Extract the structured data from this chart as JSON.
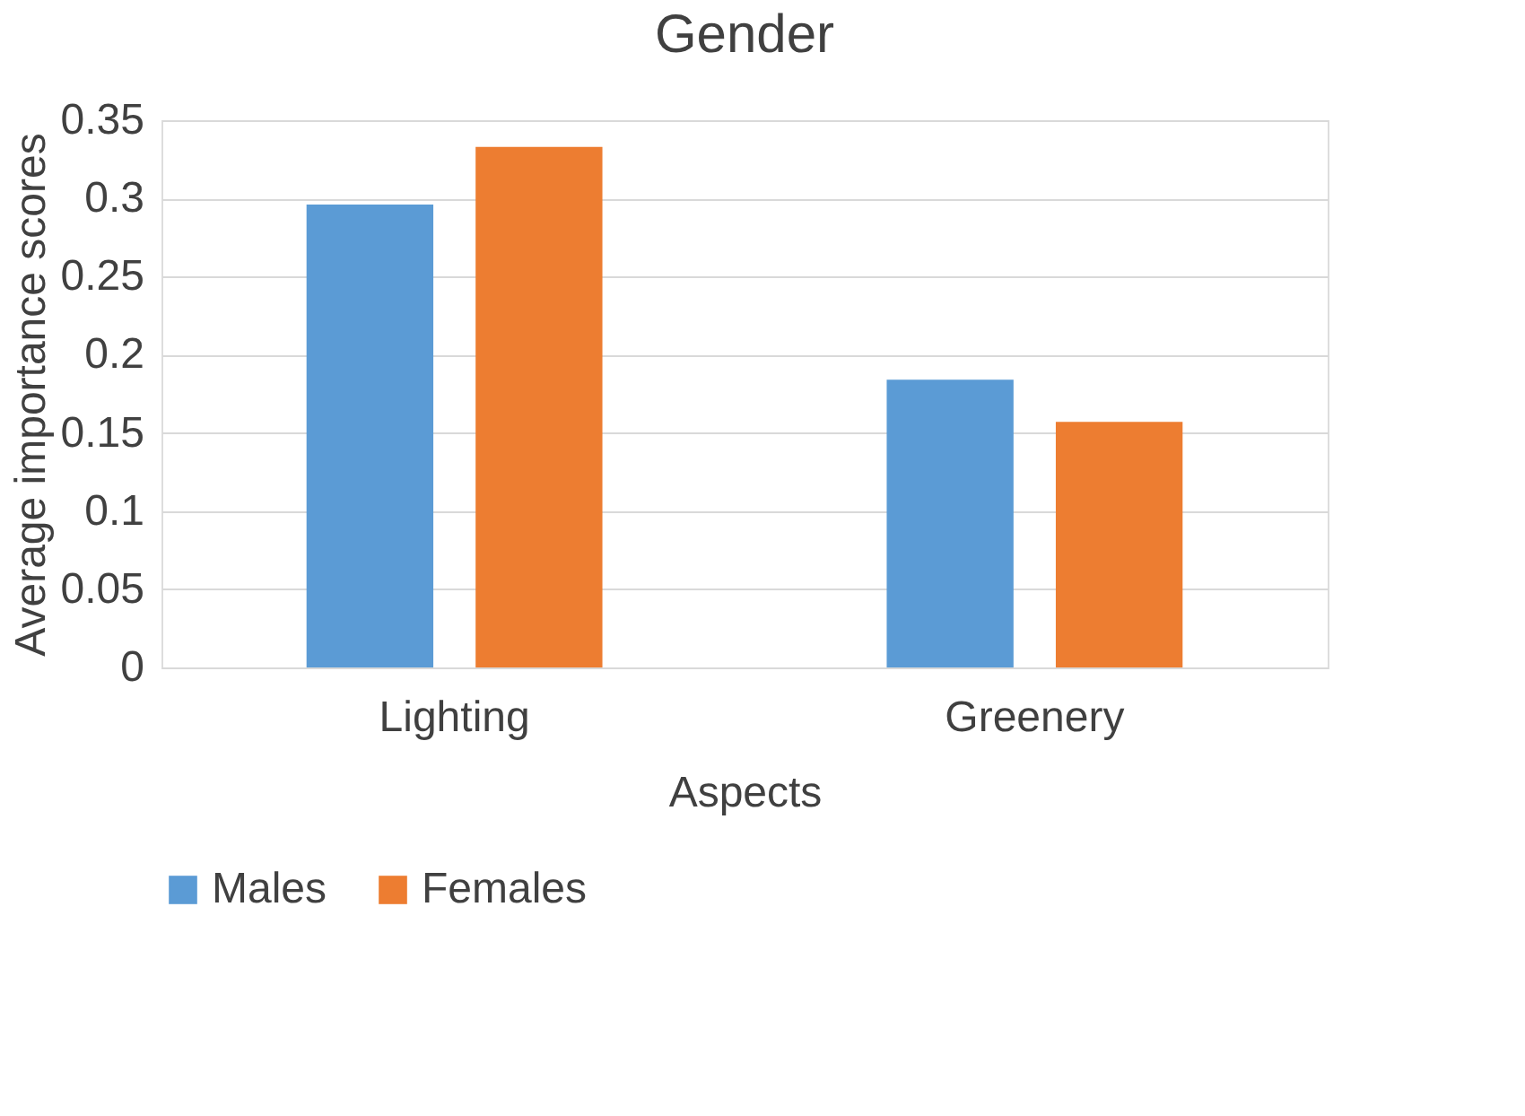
{
  "chart_data": {
    "type": "bar",
    "title": "Gender",
    "xlabel": "Aspects",
    "ylabel": "Average importance scores",
    "categories": [
      "Lighting",
      "Greenery"
    ],
    "series": [
      {
        "name": "Males",
        "color": "#5b9bd5",
        "values": [
          0.296,
          0.184
        ]
      },
      {
        "name": "Females",
        "color": "#ed7d31",
        "values": [
          0.333,
          0.157
        ]
      }
    ],
    "ylim": [
      0,
      0.35
    ],
    "yticks": [
      0,
      0.05,
      0.1,
      0.15,
      0.2,
      0.25,
      0.3,
      0.35
    ],
    "grid": "y",
    "legend": "bottom"
  }
}
